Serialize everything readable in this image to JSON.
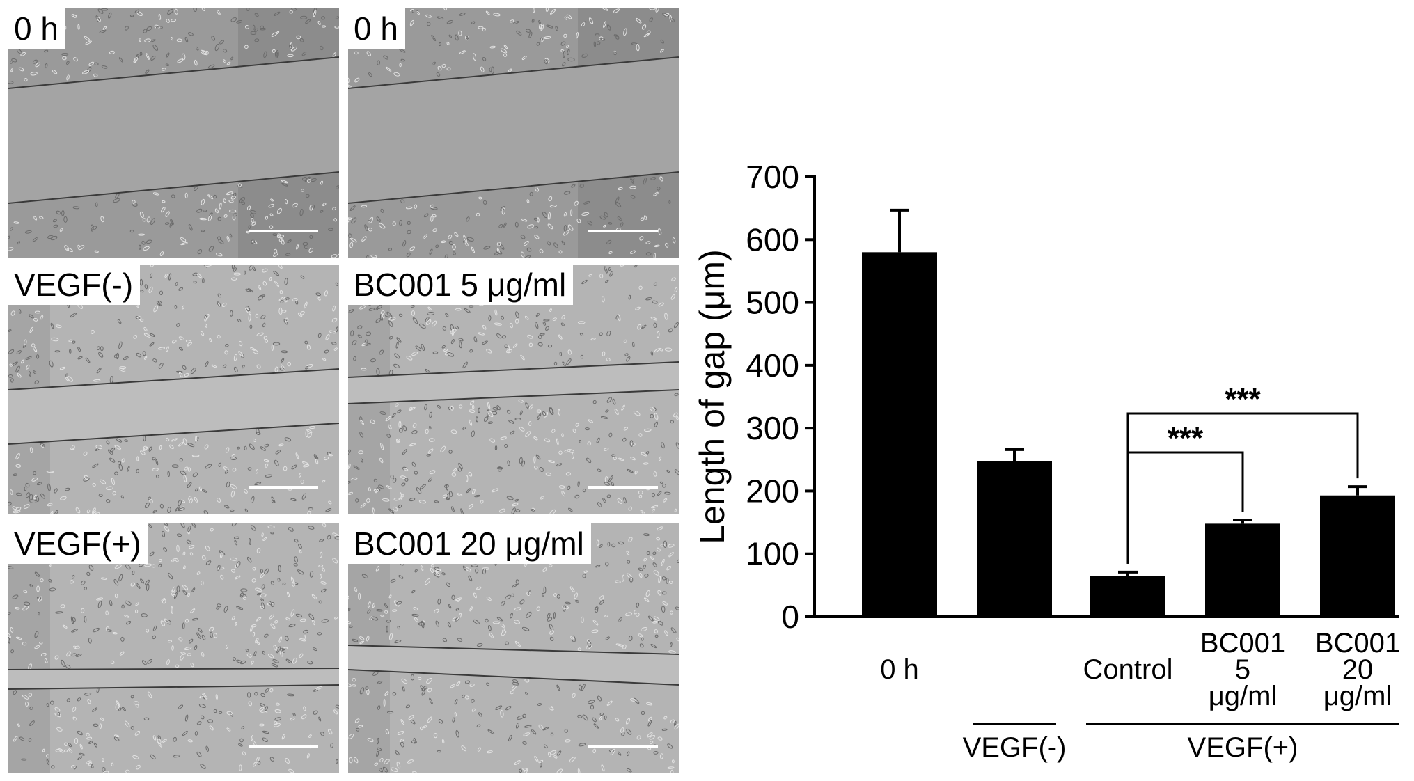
{
  "panels": [
    {
      "label": "0 h"
    },
    {
      "label": "0 h"
    },
    {
      "label": "VEGF(-)"
    },
    {
      "label": "BC001 5 μg/ml"
    },
    {
      "label": "VEGF(+)"
    },
    {
      "label": "BC001 20 μg/ml"
    }
  ],
  "chart_data": {
    "type": "bar",
    "ylabel": "Length of gap (μm)",
    "ylim": [
      0,
      700
    ],
    "yticks": [
      0,
      100,
      200,
      300,
      400,
      500,
      600,
      700
    ],
    "categories": [
      {
        "lines": [
          "0 h"
        ]
      },
      {
        "lines": [
          ""
        ]
      },
      {
        "lines": [
          "Control"
        ]
      },
      {
        "lines": [
          "BC001",
          "5",
          "μg/ml"
        ]
      },
      {
        "lines": [
          "BC001",
          "20",
          "μg/ml"
        ]
      }
    ],
    "values": [
      580,
      248,
      65,
      148,
      193
    ],
    "errors": [
      67,
      18,
      6,
      6,
      14
    ],
    "bar_color": "#000000",
    "significance": [
      {
        "from": 2,
        "to": 3,
        "label": "***"
      },
      {
        "from": 2,
        "to": 4,
        "label": "***"
      }
    ],
    "groups": [
      {
        "label": "VEGF(-)",
        "from": 1,
        "to": 1
      },
      {
        "label": "VEGF(+)",
        "from": 2,
        "to": 4
      }
    ]
  }
}
